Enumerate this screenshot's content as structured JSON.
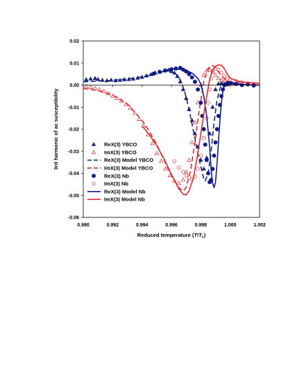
{
  "chart_data": {
    "type": "scatter",
    "title": "",
    "xlabel": "Reduced temperature (T/Tc)",
    "xlabel_parts": {
      "prefix": "Reduced temperature (",
      "T": "T",
      "slash": "/",
      "Tc_main": "T",
      "Tc_sub": "c",
      "suffix": ")"
    },
    "ylabel": "3rd harmonic of ac susceptibility",
    "xlim": [
      0.99,
      1.002
    ],
    "ylim": [
      -0.06,
      0.02
    ],
    "x_ticks": [
      "0.990",
      "0.992",
      "0.994",
      "0.996",
      "0.998",
      "1.000",
      "1.002"
    ],
    "y_ticks": [
      "0.02",
      "0.01",
      "0.00",
      "-0.01",
      "-0.02",
      "-0.03",
      "-0.04",
      "-0.05",
      "-0.06"
    ],
    "grid": false,
    "legend_position": "lower-left",
    "colors": {
      "ybco_blue": "#1a237e",
      "nb_blue": "#0d1a8f",
      "red": "#e8282b"
    },
    "series": [
      {
        "name": "ReX(3) YBCO",
        "kind": "marker",
        "marker": "triangle-filled",
        "color": "#1a237e",
        "points": [
          [
            0.9902,
            0.0025
          ],
          [
            0.9905,
            0.0028
          ],
          [
            0.9908,
            0.003
          ],
          [
            0.991,
            0.0026
          ],
          [
            0.9913,
            0.0022
          ],
          [
            0.9916,
            0.002
          ],
          [
            0.9919,
            0.0023
          ],
          [
            0.9922,
            0.002
          ],
          [
            0.9925,
            0.0022
          ],
          [
            0.9928,
            0.0025
          ],
          [
            0.9931,
            0.0026
          ],
          [
            0.9934,
            0.0028
          ],
          [
            0.9937,
            0.0032
          ],
          [
            0.994,
            0.0036
          ],
          [
            0.9943,
            0.0042
          ],
          [
            0.9946,
            0.0048
          ],
          [
            0.9949,
            0.0055
          ],
          [
            0.9952,
            0.006
          ],
          [
            0.9955,
            0.0065
          ],
          [
            0.9958,
            0.0068
          ],
          [
            0.996,
            0.0062
          ],
          [
            0.9962,
            0.0055
          ],
          [
            0.9964,
            0.004
          ],
          [
            0.9966,
            0.0015
          ],
          [
            0.9968,
            -0.002
          ],
          [
            0.997,
            -0.006
          ],
          [
            0.9972,
            -0.011
          ],
          [
            0.9974,
            -0.016
          ],
          [
            0.9976,
            -0.022
          ],
          [
            0.9978,
            -0.028
          ],
          [
            0.998,
            -0.034
          ],
          [
            0.9982,
            -0.038
          ],
          [
            0.9984,
            -0.033
          ],
          [
            0.9986,
            -0.022
          ],
          [
            0.9988,
            -0.01
          ],
          [
            0.999,
            -0.002
          ],
          [
            0.9992,
            0.0005
          ],
          [
            0.9994,
            0.0008
          ],
          [
            0.9996,
            0.0005
          ],
          [
            0.9998,
            0.0002
          ]
        ]
      },
      {
        "name": "ImX(3) YBCO",
        "kind": "marker",
        "marker": "triangle-open",
        "color": "#e8282b",
        "points": [
          [
            0.9902,
            -0.0005
          ],
          [
            0.9905,
            -0.001
          ],
          [
            0.9908,
            -0.0015
          ],
          [
            0.9911,
            -0.002
          ],
          [
            0.9914,
            -0.0028
          ],
          [
            0.9917,
            -0.0038
          ],
          [
            0.992,
            -0.005
          ],
          [
            0.9923,
            -0.006
          ],
          [
            0.9926,
            -0.0072
          ],
          [
            0.9929,
            -0.0088
          ],
          [
            0.9932,
            -0.0105
          ],
          [
            0.9935,
            -0.0128
          ],
          [
            0.9938,
            -0.0155
          ],
          [
            0.9941,
            -0.0185
          ],
          [
            0.9944,
            -0.0225
          ],
          [
            0.9947,
            -0.0265
          ],
          [
            0.995,
            -0.031
          ],
          [
            0.9953,
            -0.0345
          ],
          [
            0.9956,
            -0.038
          ],
          [
            0.9959,
            -0.041
          ],
          [
            0.9962,
            -0.0435
          ],
          [
            0.9965,
            -0.0445
          ],
          [
            0.9968,
            -0.043
          ],
          [
            0.997,
            -0.0395
          ],
          [
            0.9972,
            -0.034
          ],
          [
            0.9974,
            -0.026
          ],
          [
            0.9976,
            -0.017
          ],
          [
            0.9978,
            -0.008
          ],
          [
            0.998,
            0.0
          ],
          [
            0.9982,
            0.0045
          ],
          [
            0.9984,
            0.0065
          ],
          [
            0.9986,
            0.0068
          ],
          [
            0.9988,
            0.006
          ],
          [
            0.999,
            0.0045
          ],
          [
            0.9992,
            0.003
          ],
          [
            0.9994,
            0.0022
          ],
          [
            0.9996,
            0.0018
          ],
          [
            0.9998,
            0.0012
          ],
          [
            1.0,
            0.0008
          ],
          [
            1.0002,
            0.0005
          ]
        ]
      },
      {
        "name": "ReX(3) Model YBCO",
        "kind": "line",
        "dash": "dashed",
        "color": "#1a237e",
        "points": [
          [
            0.99,
            0.0015
          ],
          [
            0.991,
            0.0018
          ],
          [
            0.992,
            0.0022
          ],
          [
            0.993,
            0.0028
          ],
          [
            0.994,
            0.0037
          ],
          [
            0.9945,
            0.0045
          ],
          [
            0.995,
            0.0054
          ],
          [
            0.9955,
            0.0062
          ],
          [
            0.9958,
            0.0066
          ],
          [
            0.996,
            0.0063
          ],
          [
            0.9963,
            0.005
          ],
          [
            0.9966,
            0.0025
          ],
          [
            0.9969,
            -0.003
          ],
          [
            0.9972,
            -0.011
          ],
          [
            0.9975,
            -0.021
          ],
          [
            0.9978,
            -0.031
          ],
          [
            0.998,
            -0.037
          ],
          [
            0.9982,
            -0.0425
          ],
          [
            0.9983,
            -0.0435
          ],
          [
            0.9985,
            -0.04
          ],
          [
            0.9987,
            -0.03
          ],
          [
            0.9989,
            -0.017
          ],
          [
            0.9991,
            -0.007
          ],
          [
            0.9993,
            -0.0015
          ],
          [
            0.9995,
            0.0005
          ],
          [
            0.9998,
            0.0008
          ],
          [
            1.0,
            0.0005
          ],
          [
            1.002,
            0.0
          ]
        ]
      },
      {
        "name": "ImX(3) Model YBCO",
        "kind": "line",
        "dash": "dashed",
        "color": "#e8282b",
        "points": [
          [
            0.99,
            -0.0015
          ],
          [
            0.991,
            -0.0025
          ],
          [
            0.992,
            -0.0045
          ],
          [
            0.993,
            -0.0085
          ],
          [
            0.994,
            -0.016
          ],
          [
            0.9945,
            -0.021
          ],
          [
            0.995,
            -0.027
          ],
          [
            0.9955,
            -0.034
          ],
          [
            0.996,
            -0.041
          ],
          [
            0.9965,
            -0.0465
          ],
          [
            0.9968,
            -0.048
          ],
          [
            0.997,
            -0.0465
          ],
          [
            0.9973,
            -0.039
          ],
          [
            0.9976,
            -0.026
          ],
          [
            0.9979,
            -0.011
          ],
          [
            0.9982,
            0.0015
          ],
          [
            0.9985,
            0.0075
          ],
          [
            0.9987,
            0.009
          ],
          [
            0.9989,
            0.0085
          ],
          [
            0.9992,
            0.006
          ],
          [
            0.9995,
            0.0035
          ],
          [
            0.9998,
            0.002
          ],
          [
            1.0,
            0.0015
          ],
          [
            1.002,
            0.0008
          ]
        ]
      },
      {
        "name": "ReX(3) Nb",
        "kind": "marker",
        "marker": "circle-filled",
        "color": "#0d1a8f",
        "points": [
          [
            0.9948,
            0.0052
          ],
          [
            0.9952,
            0.006
          ],
          [
            0.9956,
            0.0066
          ],
          [
            0.996,
            0.0072
          ],
          [
            0.9963,
            0.0075
          ],
          [
            0.9966,
            0.0078
          ],
          [
            0.9968,
            0.007
          ],
          [
            0.997,
            0.0062
          ],
          [
            0.9972,
            0.005
          ],
          [
            0.9974,
            0.0035
          ],
          [
            0.9976,
            0.0015
          ],
          [
            0.9978,
            -0.002
          ],
          [
            0.998,
            -0.008
          ],
          [
            0.9981,
            -0.014
          ],
          [
            0.9982,
            -0.02
          ],
          [
            0.9983,
            -0.027
          ],
          [
            0.9984,
            -0.034
          ],
          [
            0.9985,
            -0.04
          ],
          [
            0.9986,
            -0.044
          ],
          [
            0.9987,
            -0.043
          ],
          [
            0.9988,
            -0.038
          ],
          [
            0.9989,
            -0.032
          ],
          [
            0.999,
            -0.026
          ],
          [
            0.9991,
            -0.02
          ],
          [
            0.9992,
            -0.014
          ],
          [
            0.9993,
            -0.009
          ],
          [
            0.9994,
            -0.005
          ],
          [
            0.9995,
            -0.002
          ],
          [
            0.9996,
            0.0
          ],
          [
            0.9998,
            0.0008
          ],
          [
            1.0,
            0.001
          ],
          [
            1.0004,
            0.0005
          ],
          [
            1.0008,
            0.0
          ],
          [
            1.0012,
            0.0003
          ],
          [
            1.0016,
            -0.0002
          ]
        ]
      },
      {
        "name": "ImX(3) Nb",
        "kind": "marker",
        "marker": "circle-open",
        "color": "#e8282b",
        "points": [
          [
            0.9962,
            -0.0345
          ],
          [
            0.9965,
            -0.0375
          ],
          [
            0.9968,
            -0.0395
          ],
          [
            0.997,
            -0.041
          ],
          [
            0.9972,
            -0.042
          ],
          [
            0.9974,
            -0.0425
          ],
          [
            0.9976,
            -0.0415
          ],
          [
            0.9978,
            -0.038
          ],
          [
            0.998,
            -0.032
          ],
          [
            0.9982,
            -0.024
          ],
          [
            0.9984,
            -0.015
          ],
          [
            0.9985,
            -0.008
          ],
          [
            0.9986,
            -0.002
          ],
          [
            0.9987,
            0.003
          ],
          [
            0.9988,
            0.0065
          ],
          [
            0.999,
            0.0075
          ],
          [
            0.9992,
            0.007
          ],
          [
            0.9994,
            0.0055
          ],
          [
            0.9996,
            0.004
          ],
          [
            0.9998,
            0.003
          ],
          [
            1.0,
            0.0025
          ],
          [
            1.0004,
            0.0018
          ],
          [
            1.0008,
            0.0012
          ],
          [
            1.0012,
            0.0008
          ],
          [
            1.0016,
            0.0005
          ]
        ]
      },
      {
        "name": "ReX(3) Model Nb",
        "kind": "line",
        "dash": "solid",
        "color": "#0d1a8f",
        "points": [
          [
            0.996,
            0.0073
          ],
          [
            0.9965,
            0.0072
          ],
          [
            0.997,
            0.0068
          ],
          [
            0.9975,
            0.005
          ],
          [
            0.9978,
            0.003
          ],
          [
            0.998,
            0.0005
          ],
          [
            0.9982,
            -0.005
          ],
          [
            0.9984,
            -0.014
          ],
          [
            0.9986,
            -0.028
          ],
          [
            0.9987,
            -0.038
          ],
          [
            0.9988,
            -0.0445
          ],
          [
            0.9989,
            -0.0465
          ],
          [
            0.999,
            -0.044
          ],
          [
            0.9991,
            -0.036
          ],
          [
            0.9992,
            -0.026
          ],
          [
            0.9993,
            -0.016
          ],
          [
            0.9994,
            -0.008
          ],
          [
            0.9995,
            -0.003
          ],
          [
            0.9996,
            0.0
          ],
          [
            0.9998,
            0.0012
          ],
          [
            1.0,
            0.0012
          ],
          [
            1.0005,
            0.0006
          ],
          [
            1.001,
            0.0002
          ],
          [
            1.002,
            0.0
          ]
        ]
      },
      {
        "name": "ImX(3) Model Nb",
        "kind": "line",
        "dash": "solid",
        "color": "#e8282b",
        "points": [
          [
            0.994,
            -0.0185
          ],
          [
            0.9945,
            -0.0225
          ],
          [
            0.995,
            -0.0275
          ],
          [
            0.9955,
            -0.0335
          ],
          [
            0.996,
            -0.0405
          ],
          [
            0.9965,
            -0.047
          ],
          [
            0.9968,
            -0.0495
          ],
          [
            0.997,
            -0.0498
          ],
          [
            0.9972,
            -0.048
          ],
          [
            0.9975,
            -0.042
          ],
          [
            0.9978,
            -0.031
          ],
          [
            0.998,
            -0.022
          ],
          [
            0.9983,
            -0.009
          ],
          [
            0.9986,
            0.0025
          ],
          [
            0.9988,
            0.007
          ],
          [
            0.999,
            0.0085
          ],
          [
            0.9992,
            0.0092
          ],
          [
            0.9994,
            0.009
          ],
          [
            0.9996,
            0.0075
          ],
          [
            0.9998,
            0.005
          ],
          [
            1.0,
            0.0032
          ],
          [
            1.0005,
            0.0018
          ],
          [
            1.001,
            0.0012
          ],
          [
            1.002,
            0.0008
          ]
        ]
      }
    ]
  }
}
